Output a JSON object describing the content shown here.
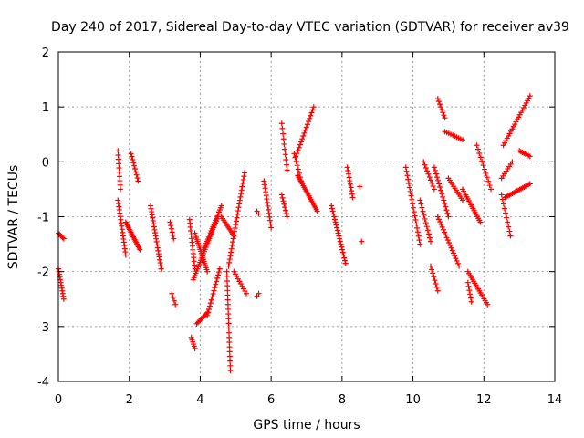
{
  "chart_data": {
    "type": "scatter",
    "title": "Day 240 of 2017, Sidereal Day-to-day VTEC variation (SDTVAR) for receiver av39",
    "xlabel": "GPS time / hours",
    "ylabel": "SDTVAR / TECUs",
    "xlim": [
      0,
      14
    ],
    "ylim": [
      -4,
      2
    ],
    "x_ticks": [
      0,
      2,
      4,
      6,
      8,
      10,
      12,
      14
    ],
    "y_ticks": [
      -4,
      -3,
      -2,
      -1,
      0,
      1,
      2
    ],
    "x_tick_labels": [
      "0",
      "2",
      "4",
      "6",
      "8",
      "10",
      "12",
      "14"
    ],
    "y_tick_labels": [
      "-4",
      "-3",
      "-2",
      "-1",
      "0",
      "1",
      "2"
    ],
    "grid": true,
    "marker": "+",
    "color": "#ff0000",
    "segments": [
      {
        "x": [
          0.0,
          0.15
        ],
        "y": [
          -1.3,
          -1.4
        ],
        "n": 6
      },
      {
        "x": [
          0.0,
          0.15
        ],
        "y": [
          -1.95,
          -2.5
        ],
        "n": 12
      },
      {
        "x": [
          1.68,
          1.75
        ],
        "y": [
          0.2,
          -0.5
        ],
        "n": 10
      },
      {
        "x": [
          1.68,
          1.9
        ],
        "y": [
          -0.7,
          -1.7
        ],
        "n": 18
      },
      {
        "x": [
          1.9,
          2.3
        ],
        "y": [
          -1.1,
          -1.6
        ],
        "n": 20
      },
      {
        "x": [
          2.05,
          2.25
        ],
        "y": [
          0.15,
          -0.35
        ],
        "n": 10
      },
      {
        "x": [
          2.6,
          2.9
        ],
        "y": [
          -0.8,
          -1.95
        ],
        "n": 22
      },
      {
        "x": [
          3.15,
          3.25
        ],
        "y": [
          -1.1,
          -1.4
        ],
        "n": 6
      },
      {
        "x": [
          3.2,
          3.3
        ],
        "y": [
          -2.4,
          -2.6
        ],
        "n": 4
      },
      {
        "x": [
          3.7,
          3.85
        ],
        "y": [
          -1.05,
          -1.95
        ],
        "n": 14
      },
      {
        "x": [
          3.75,
          3.85
        ],
        "y": [
          -3.2,
          -3.4
        ],
        "n": 6
      },
      {
        "x": [
          3.8,
          4.5
        ],
        "y": [
          -2.15,
          -1.0
        ],
        "n": 30
      },
      {
        "x": [
          3.85,
          4.2
        ],
        "y": [
          -1.3,
          -2.0
        ],
        "n": 20
      },
      {
        "x": [
          3.9,
          4.2
        ],
        "y": [
          -2.95,
          -2.75
        ],
        "n": 10
      },
      {
        "x": [
          4.1,
          4.6
        ],
        "y": [
          -1.6,
          -0.8
        ],
        "n": 22
      },
      {
        "x": [
          4.2,
          4.55
        ],
        "y": [
          -2.8,
          -1.95
        ],
        "n": 16
      },
      {
        "x": [
          4.6,
          4.95
        ],
        "y": [
          -1.0,
          -1.35
        ],
        "n": 12
      },
      {
        "x": [
          4.75,
          4.85
        ],
        "y": [
          -2.0,
          -3.8
        ],
        "n": 22
      },
      {
        "x": [
          4.8,
          5.25
        ],
        "y": [
          -1.9,
          -0.2
        ],
        "n": 28
      },
      {
        "x": [
          4.95,
          5.3
        ],
        "y": [
          -2.0,
          -2.4
        ],
        "n": 10
      },
      {
        "x": [
          5.6,
          5.65
        ],
        "y": [
          -0.9,
          -0.95
        ],
        "n": 2
      },
      {
        "x": [
          5.6,
          5.65
        ],
        "y": [
          -2.45,
          -2.4
        ],
        "n": 2
      },
      {
        "x": [
          5.8,
          6.0
        ],
        "y": [
          -0.35,
          -1.2
        ],
        "n": 14
      },
      {
        "x": [
          6.3,
          6.45
        ],
        "y": [
          0.7,
          -0.15
        ],
        "n": 10
      },
      {
        "x": [
          6.3,
          6.45
        ],
        "y": [
          -0.6,
          -1.0
        ],
        "n": 8
      },
      {
        "x": [
          6.65,
          6.85
        ],
        "y": [
          0.15,
          -0.35
        ],
        "n": 8
      },
      {
        "x": [
          6.7,
          7.2
        ],
        "y": [
          0.1,
          1.0
        ],
        "n": 18
      },
      {
        "x": [
          6.75,
          7.3
        ],
        "y": [
          -0.25,
          -0.9
        ],
        "n": 22
      },
      {
        "x": [
          7.7,
          8.1
        ],
        "y": [
          -0.8,
          -1.85
        ],
        "n": 22
      },
      {
        "x": [
          8.15,
          8.3
        ],
        "y": [
          -0.1,
          -0.65
        ],
        "n": 10
      },
      {
        "x": [
          8.5,
          8.55
        ],
        "y": [
          -0.45,
          -1.45
        ],
        "n": 2
      },
      {
        "x": [
          9.8,
          10.2
        ],
        "y": [
          -0.1,
          -1.5
        ],
        "n": 20
      },
      {
        "x": [
          10.2,
          10.5
        ],
        "y": [
          -0.7,
          -1.45
        ],
        "n": 12
      },
      {
        "x": [
          10.3,
          10.6
        ],
        "y": [
          0.0,
          -0.5
        ],
        "n": 10
      },
      {
        "x": [
          10.5,
          10.7
        ],
        "y": [
          -1.9,
          -2.35
        ],
        "n": 8
      },
      {
        "x": [
          10.7,
          11.3
        ],
        "y": [
          -1.0,
          -1.9
        ],
        "n": 20
      },
      {
        "x": [
          10.6,
          11.0
        ],
        "y": [
          -0.1,
          -1.0
        ],
        "n": 16
      },
      {
        "x": [
          10.7,
          10.9
        ],
        "y": [
          1.15,
          0.8
        ],
        "n": 8
      },
      {
        "x": [
          10.9,
          11.4
        ],
        "y": [
          0.55,
          0.4
        ],
        "n": 10
      },
      {
        "x": [
          11.0,
          11.4
        ],
        "y": [
          -0.3,
          -0.7
        ],
        "n": 12
      },
      {
        "x": [
          11.4,
          11.9
        ],
        "y": [
          -0.5,
          -1.1
        ],
        "n": 18
      },
      {
        "x": [
          11.55,
          12.1
        ],
        "y": [
          -2.0,
          -2.6
        ],
        "n": 18
      },
      {
        "x": [
          11.55,
          11.65
        ],
        "y": [
          -2.2,
          -2.55
        ],
        "n": 6
      },
      {
        "x": [
          11.8,
          12.2
        ],
        "y": [
          0.3,
          -0.5
        ],
        "n": 12
      },
      {
        "x": [
          12.5,
          12.75
        ],
        "y": [
          -0.6,
          -1.35
        ],
        "n": 10
      },
      {
        "x": [
          12.5,
          12.8
        ],
        "y": [
          -0.3,
          0.0
        ],
        "n": 8
      },
      {
        "x": [
          12.55,
          13.3
        ],
        "y": [
          0.3,
          1.2
        ],
        "n": 22
      },
      {
        "x": [
          12.6,
          13.3
        ],
        "y": [
          -0.65,
          -0.4
        ],
        "n": 18
      },
      {
        "x": [
          13.0,
          13.3
        ],
        "y": [
          0.2,
          0.1
        ],
        "n": 8
      }
    ]
  }
}
